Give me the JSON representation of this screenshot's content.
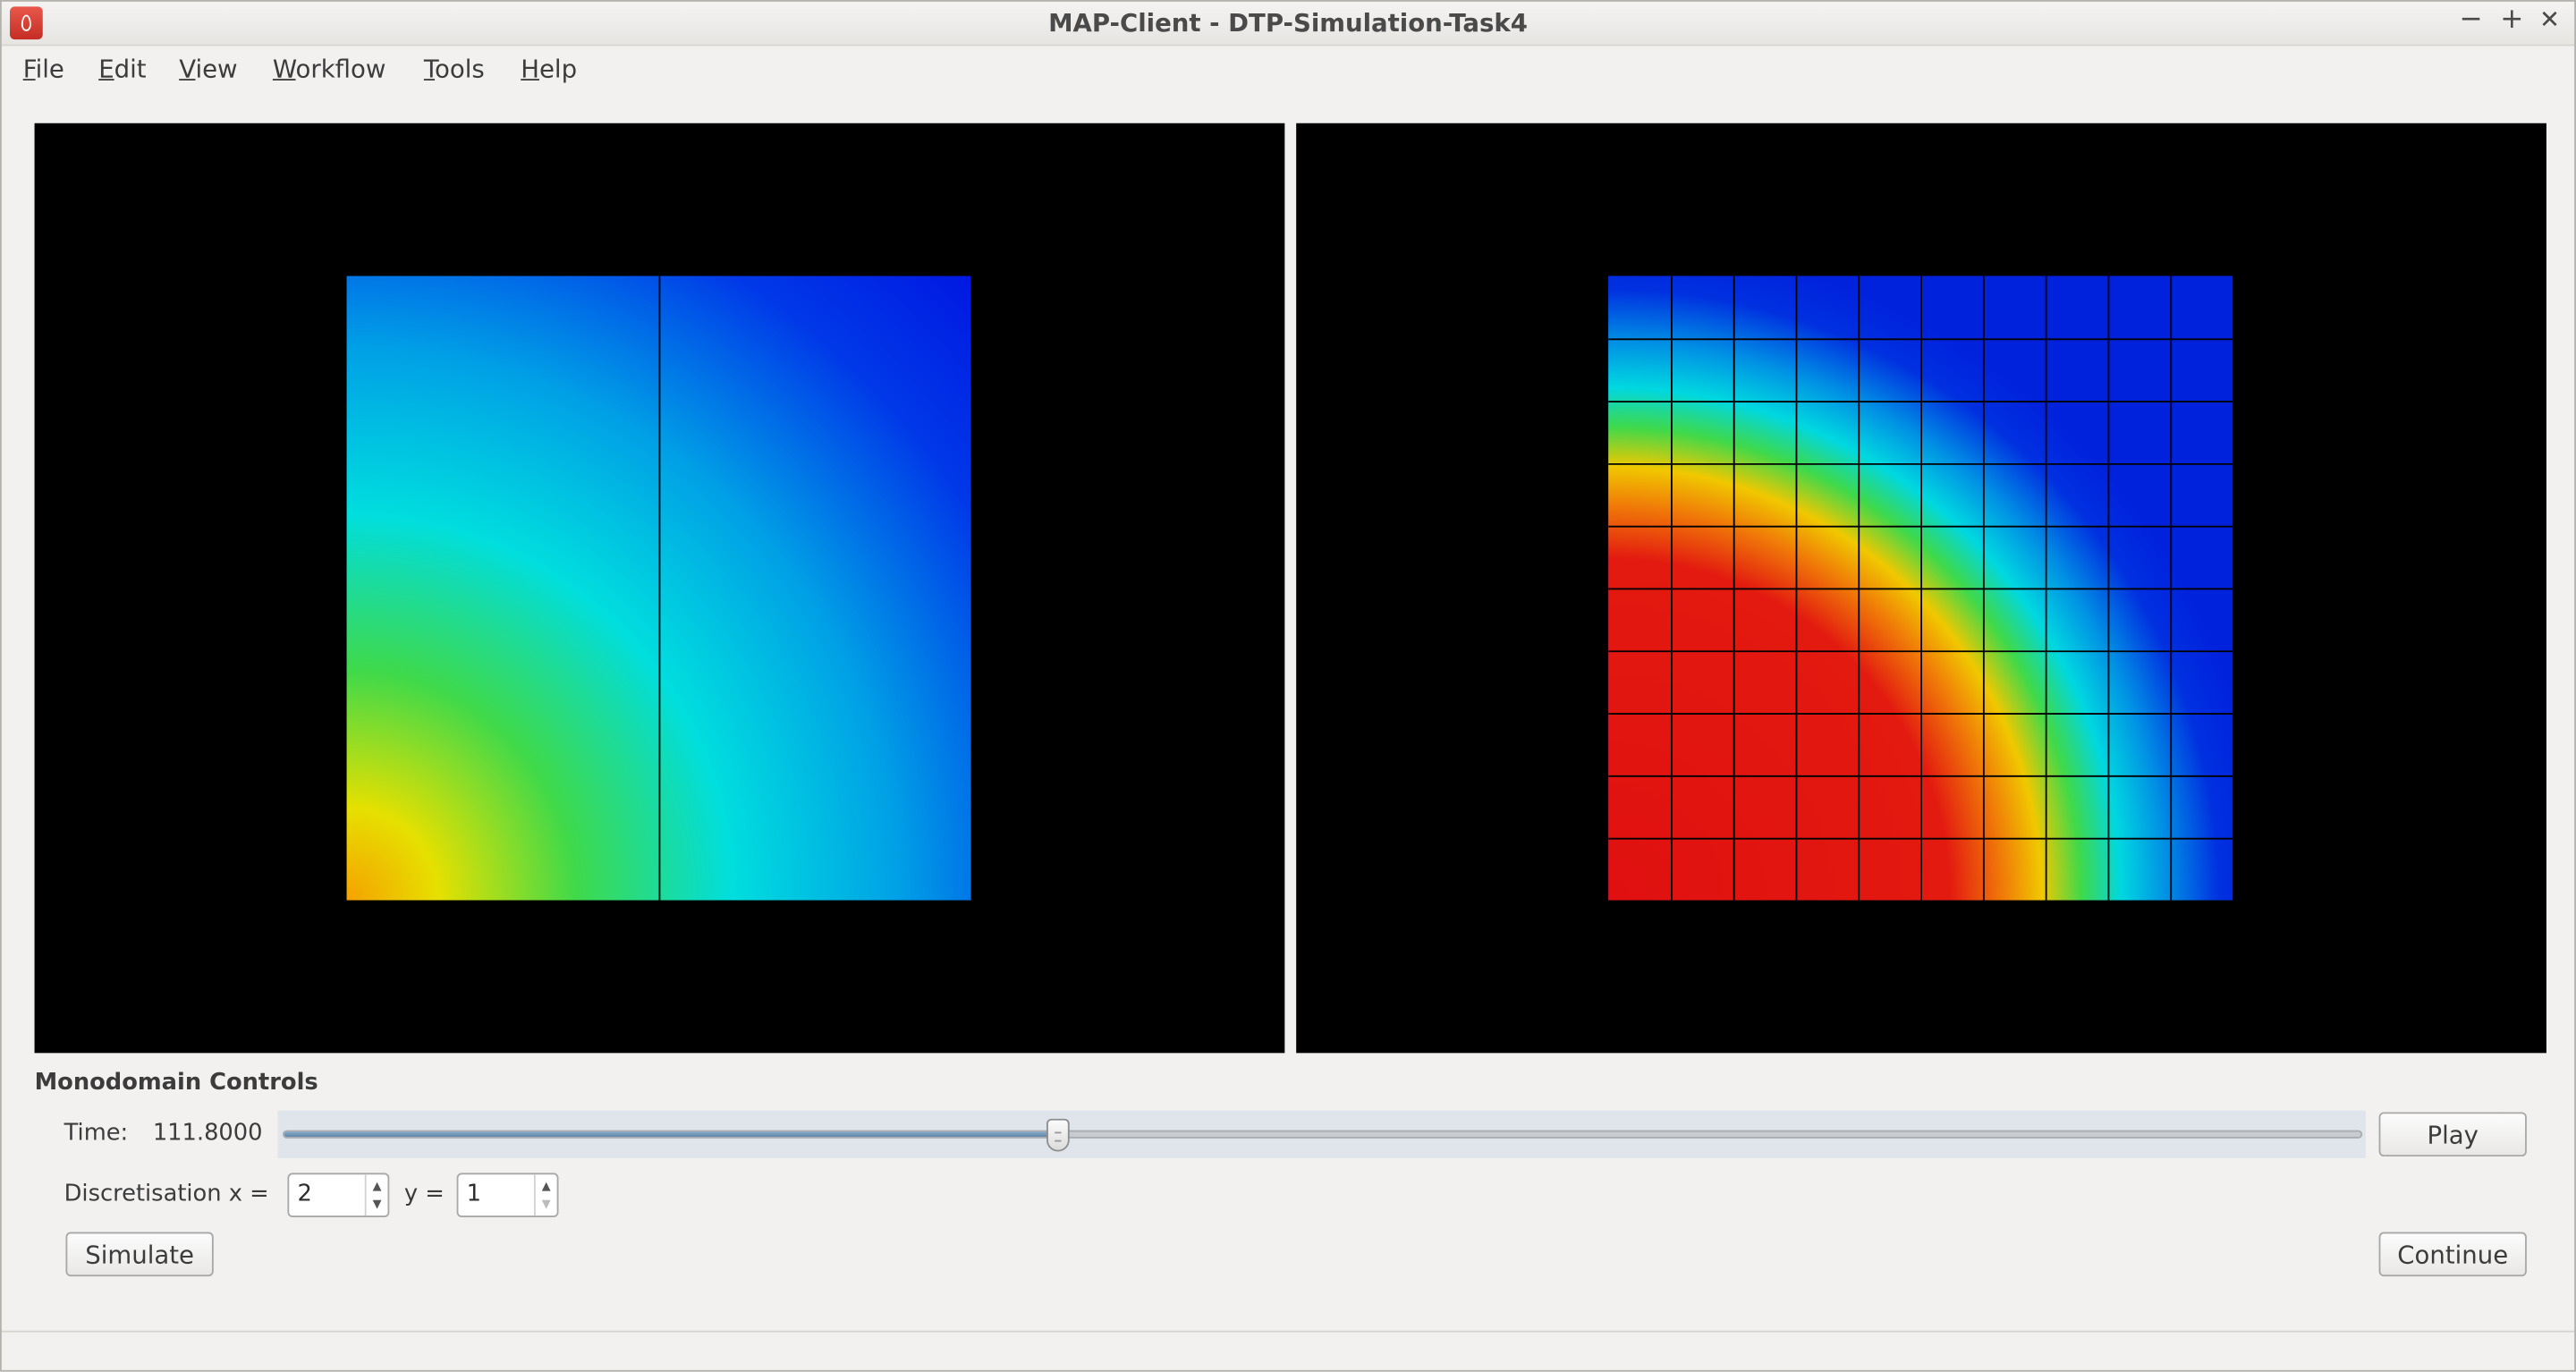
{
  "window": {
    "title": "MAP-Client - DTP-Simulation-Task4",
    "minimize": "−",
    "maximize": "+",
    "close": "✕"
  },
  "menu": {
    "items": [
      {
        "label": "File"
      },
      {
        "label": "Edit"
      },
      {
        "label": "View"
      },
      {
        "label": "Workflow"
      },
      {
        "label": "Tools"
      },
      {
        "label": "Help"
      }
    ]
  },
  "viewports": {
    "left": {
      "mesh_columns": 2,
      "mesh_rows": 1
    },
    "right": {
      "mesh_columns": 10,
      "mesh_rows": 10
    }
  },
  "controls": {
    "group_title": "Monodomain Controls",
    "time_label": "Time:",
    "time_value": "111.8000",
    "time_slider_fraction": 0.373,
    "play_label": "Play",
    "discretisation_x_label": "Discretisation x =",
    "discretisation_x_value": "2",
    "discretisation_y_label": "y =",
    "discretisation_y_value": "1",
    "simulate_label": "Simulate",
    "continue_label": "Continue"
  },
  "colors": {
    "viewport_background": "#000000",
    "window_background": "#f2f1f0",
    "slider_fill": "#6f95ba",
    "app_icon": "#d8413a"
  }
}
